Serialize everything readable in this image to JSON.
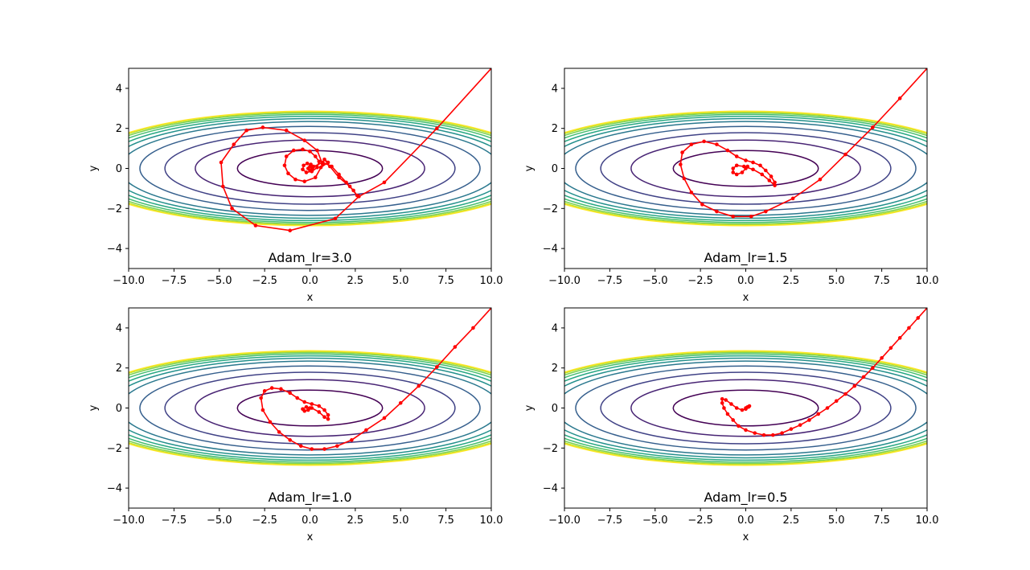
{
  "chart_data": [
    {
      "type": "line",
      "title": "Adam_lr=3.0",
      "xlabel": "x",
      "ylabel": "y",
      "xlim": [
        -10,
        10
      ],
      "ylim": [
        -5,
        5
      ],
      "xticks": [
        "−10.0",
        "−7.5",
        "−5.0",
        "−2.5",
        "0.0",
        "2.5",
        "5.0",
        "7.5",
        "10.0"
      ],
      "yticks": [
        "−4",
        "−2",
        "0",
        "2",
        "4"
      ],
      "contours": {
        "function": "x^2/20 + y^2",
        "levels": [
          0.8,
          2.0,
          3.2,
          4.4,
          5.5,
          6.2,
          6.8,
          7.3,
          7.7,
          8.0,
          8.2
        ],
        "colormap": "viridis"
      },
      "series": [
        {
          "color": "#ff0000",
          "points": [
            [
              10,
              5
            ],
            [
              7,
              2
            ],
            [
              4.1,
              -0.7
            ],
            [
              2.7,
              -1.4
            ],
            [
              1.4,
              -2.5
            ],
            [
              -1.1,
              -3.1
            ],
            [
              -3,
              -2.85
            ],
            [
              -4.3,
              -2
            ],
            [
              -4.8,
              -0.9
            ],
            [
              -4.9,
              0.3
            ],
            [
              -4.2,
              1.2
            ],
            [
              -3.5,
              1.9
            ],
            [
              -2.6,
              2.05
            ],
            [
              -1.3,
              1.9
            ],
            [
              -0.3,
              1.4
            ],
            [
              0.4,
              0.9
            ],
            [
              0.7,
              0.2
            ],
            [
              0.3,
              -0.45
            ],
            [
              -0.3,
              -0.65
            ],
            [
              -0.8,
              -0.55
            ],
            [
              -1.2,
              -0.25
            ],
            [
              -1.4,
              0.15
            ],
            [
              -1.3,
              0.6
            ],
            [
              -0.9,
              0.9
            ],
            [
              -0.4,
              0.95
            ],
            [
              0,
              0.85
            ],
            [
              0.3,
              0.6
            ],
            [
              0.5,
              0.35
            ],
            [
              0.4,
              0.05
            ],
            [
              0.1,
              -0.15
            ],
            [
              -0.2,
              -0.2
            ],
            [
              -0.4,
              -0.05
            ],
            [
              -0.35,
              0.15
            ],
            [
              -0.15,
              0.25
            ],
            [
              0.05,
              0.2
            ],
            [
              0.2,
              0.1
            ],
            [
              0.15,
              -0.05
            ],
            [
              0,
              -0.1
            ],
            [
              -0.1,
              0
            ],
            [
              0,
              0.1
            ],
            [
              0.1,
              0.05
            ],
            [
              0.7,
              0.3
            ],
            [
              1.2,
              0.1
            ],
            [
              1.6,
              -0.3
            ],
            [
              2,
              -0.7
            ],
            [
              2.4,
              -1.1
            ],
            [
              2.6,
              -1.35
            ],
            [
              2.2,
              -0.9
            ],
            [
              1.6,
              -0.45
            ],
            [
              1.1,
              0.1
            ],
            [
              0.8,
              0.45
            ],
            [
              1,
              0.3
            ],
            [
              0.6,
              0.05
            ]
          ]
        }
      ]
    },
    {
      "type": "line",
      "title": "Adam_lr=1.5",
      "xlabel": "x",
      "ylabel": "y",
      "xlim": [
        -10,
        10
      ],
      "ylim": [
        -5,
        5
      ],
      "xticks": [
        "−10.0",
        "−7.5",
        "−5.0",
        "−2.5",
        "0.0",
        "2.5",
        "5.0",
        "7.5",
        "10.0"
      ],
      "yticks": [
        "−4",
        "−2",
        "0",
        "2",
        "4"
      ],
      "contours": {
        "function": "x^2/20 + y^2",
        "levels": [
          0.8,
          2.0,
          3.2,
          4.4,
          5.5,
          6.2,
          6.8,
          7.3,
          7.7,
          8.0,
          8.2
        ],
        "colormap": "viridis"
      },
      "series": [
        {
          "color": "#ff0000",
          "points": [
            [
              10,
              5
            ],
            [
              8.5,
              3.5
            ],
            [
              7,
              2.05
            ],
            [
              5.5,
              0.7
            ],
            [
              4.1,
              -0.55
            ],
            [
              2.6,
              -1.5
            ],
            [
              1.1,
              -2.15
            ],
            [
              0.3,
              -2.4
            ],
            [
              -0.7,
              -2.4
            ],
            [
              -1.6,
              -2.15
            ],
            [
              -2.4,
              -1.8
            ],
            [
              -3,
              -1.2
            ],
            [
              -3.4,
              -0.5
            ],
            [
              -3.6,
              0.2
            ],
            [
              -3.5,
              0.8
            ],
            [
              -3,
              1.2
            ],
            [
              -2.3,
              1.35
            ],
            [
              -1.6,
              1.2
            ],
            [
              -1,
              0.9
            ],
            [
              -0.5,
              0.6
            ],
            [
              0,
              0.4
            ],
            [
              0.4,
              0.3
            ],
            [
              0.8,
              0.15
            ],
            [
              1.1,
              -0.1
            ],
            [
              1.4,
              -0.4
            ],
            [
              1.6,
              -0.7
            ],
            [
              1.6,
              -0.85
            ],
            [
              1.3,
              -0.6
            ],
            [
              0.9,
              -0.3
            ],
            [
              0.4,
              -0.05
            ],
            [
              -0.1,
              0.1
            ],
            [
              -0.5,
              0.15
            ],
            [
              -0.7,
              0
            ],
            [
              -0.7,
              -0.2
            ],
            [
              -0.5,
              -0.3
            ],
            [
              -0.2,
              -0.2
            ],
            [
              0,
              0
            ],
            [
              0.1,
              0.1
            ],
            [
              0,
              0.05
            ]
          ]
        }
      ]
    },
    {
      "type": "line",
      "title": "Adam_lr=1.0",
      "xlabel": "x",
      "ylabel": "y",
      "xlim": [
        -10,
        10
      ],
      "ylim": [
        -5,
        5
      ],
      "xticks": [
        "−10.0",
        "−7.5",
        "−5.0",
        "−2.5",
        "0.0",
        "2.5",
        "5.0",
        "7.5",
        "10.0"
      ],
      "yticks": [
        "−4",
        "−2",
        "0",
        "2",
        "4"
      ],
      "contours": {
        "function": "x^2/20 + y^2",
        "levels": [
          0.8,
          2.0,
          3.2,
          4.4,
          5.5,
          6.2,
          6.8,
          7.3,
          7.7,
          8.0,
          8.2
        ],
        "colormap": "viridis"
      },
      "series": [
        {
          "color": "#ff0000",
          "points": [
            [
              10,
              5
            ],
            [
              9,
              4
            ],
            [
              8,
              3.05
            ],
            [
              7,
              2.05
            ],
            [
              6,
              1.1
            ],
            [
              5,
              0.25
            ],
            [
              4.1,
              -0.5
            ],
            [
              3.1,
              -1.1
            ],
            [
              2.3,
              -1.6
            ],
            [
              1.5,
              -1.9
            ],
            [
              0.8,
              -2.05
            ],
            [
              0.1,
              -2.05
            ],
            [
              -0.5,
              -1.9
            ],
            [
              -1.1,
              -1.6
            ],
            [
              -1.7,
              -1.2
            ],
            [
              -2.2,
              -0.7
            ],
            [
              -2.6,
              -0.1
            ],
            [
              -2.7,
              0.5
            ],
            [
              -2.5,
              0.85
            ],
            [
              -2.1,
              1
            ],
            [
              -1.6,
              0.95
            ],
            [
              -1.1,
              0.75
            ],
            [
              -0.7,
              0.5
            ],
            [
              -0.3,
              0.3
            ],
            [
              0.1,
              0.2
            ],
            [
              0.5,
              0.1
            ],
            [
              0.8,
              -0.1
            ],
            [
              1,
              -0.35
            ],
            [
              1,
              -0.55
            ],
            [
              0.8,
              -0.45
            ],
            [
              0.5,
              -0.2
            ],
            [
              0.1,
              0
            ],
            [
              -0.2,
              0.05
            ],
            [
              -0.4,
              -0.05
            ],
            [
              -0.3,
              -0.15
            ],
            [
              -0.1,
              -0.1
            ],
            [
              0,
              0
            ]
          ]
        }
      ]
    },
    {
      "type": "line",
      "title": "Adam_lr=0.5",
      "xlabel": "x",
      "ylabel": "y",
      "xlim": [
        -10,
        10
      ],
      "ylim": [
        -5,
        5
      ],
      "xticks": [
        "−10.0",
        "−7.5",
        "−5.0",
        "−2.5",
        "0.0",
        "2.5",
        "5.0",
        "7.5",
        "10.0"
      ],
      "yticks": [
        "−4",
        "−2",
        "0",
        "2",
        "4"
      ],
      "contours": {
        "function": "x^2/20 + y^2",
        "levels": [
          0.8,
          2.0,
          3.2,
          4.4,
          5.5,
          6.2,
          6.8,
          7.3,
          7.7,
          8.0,
          8.2
        ],
        "colormap": "viridis"
      },
      "series": [
        {
          "color": "#ff0000",
          "points": [
            [
              10,
              5
            ],
            [
              9.5,
              4.5
            ],
            [
              9,
              4
            ],
            [
              8.5,
              3.5
            ],
            [
              8,
              3
            ],
            [
              7.5,
              2.5
            ],
            [
              7,
              2
            ],
            [
              6.5,
              1.55
            ],
            [
              6,
              1.1
            ],
            [
              5.5,
              0.7
            ],
            [
              5,
              0.35
            ],
            [
              4.5,
              0
            ],
            [
              4,
              -0.3
            ],
            [
              3.5,
              -0.6
            ],
            [
              3,
              -0.85
            ],
            [
              2.5,
              -1.05
            ],
            [
              2,
              -1.25
            ],
            [
              1.5,
              -1.35
            ],
            [
              1,
              -1.35
            ],
            [
              0.5,
              -1.25
            ],
            [
              0,
              -1.1
            ],
            [
              -0.4,
              -0.9
            ],
            [
              -0.7,
              -0.6
            ],
            [
              -1,
              -0.3
            ],
            [
              -1.2,
              0
            ],
            [
              -1.3,
              0.25
            ],
            [
              -1.3,
              0.45
            ],
            [
              -1.1,
              0.4
            ],
            [
              -0.8,
              0.2
            ],
            [
              -0.5,
              0
            ],
            [
              -0.2,
              -0.1
            ],
            [
              0,
              -0.05
            ],
            [
              0.15,
              0.05
            ],
            [
              0.2,
              0.1
            ],
            [
              0.1,
              0.05
            ],
            [
              0,
              0
            ]
          ]
        }
      ]
    }
  ]
}
